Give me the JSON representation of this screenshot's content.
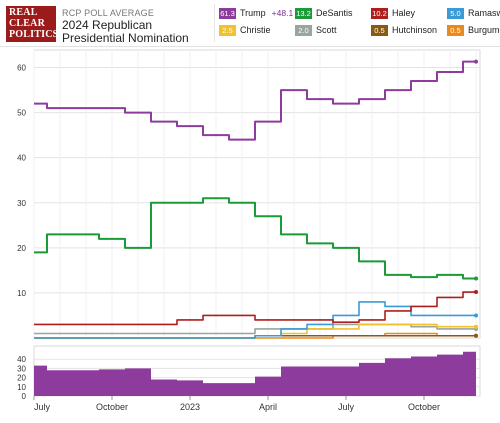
{
  "header": {
    "logo_lines": [
      "REAL",
      "CLEAR",
      "POLITICS"
    ],
    "label": "RCP POLL AVERAGE",
    "title": "2024 Republican Presidential Nomination"
  },
  "legend": [
    {
      "name": "Trump",
      "value": "61.3",
      "spread": "+48.1",
      "color": "#8e3b9e"
    },
    {
      "name": "DeSantis",
      "value": "13.2",
      "color": "#1b9a38"
    },
    {
      "name": "Haley",
      "value": "10.2",
      "color": "#b01d1d"
    },
    {
      "name": "Ramaswamy",
      "value": "5.0",
      "color": "#3a9bd6"
    },
    {
      "name": "Christie",
      "value": "2.5",
      "color": "#f2c12e"
    },
    {
      "name": "Scott",
      "value": "2.0",
      "color": "#9aa59e"
    },
    {
      "name": "Hutchinson",
      "value": "0.5",
      "color": "#8a5a12"
    },
    {
      "name": "Burgum",
      "value": "0.5",
      "color": "#e88a1c"
    }
  ],
  "chart_data": {
    "type": "line",
    "x_ticks": [
      "July",
      "October",
      "2023",
      "April",
      "July",
      "October"
    ],
    "y_ticks": [
      10,
      20,
      30,
      40,
      50,
      60
    ],
    "ylim": [
      0,
      63
    ],
    "grid": true,
    "x_months": [
      "2022-07",
      "2022-08",
      "2022-09",
      "2022-10",
      "2022-11",
      "2022-12",
      "2023-01",
      "2023-02",
      "2023-03",
      "2023-04",
      "2023-05",
      "2023-06",
      "2023-07",
      "2023-08",
      "2023-09",
      "2023-10",
      "2023-11",
      "2023-12"
    ],
    "series": [
      {
        "name": "Trump",
        "color": "#8e3b9e",
        "values": [
          52,
          51,
          51,
          51,
          50,
          48,
          47,
          45,
          44,
          48,
          55,
          53,
          52,
          53,
          55,
          57,
          59,
          61.3
        ]
      },
      {
        "name": "DeSantis",
        "color": "#1b9a38",
        "values": [
          19,
          23,
          23,
          22,
          20,
          30,
          30,
          31,
          30,
          27,
          23,
          21,
          20,
          17,
          14,
          13.5,
          14,
          13.2
        ]
      },
      {
        "name": "Haley",
        "color": "#b01d1d",
        "values": [
          3,
          3,
          3,
          3,
          3,
          3,
          4,
          5,
          5,
          4,
          4,
          4,
          3.5,
          4,
          6,
          7,
          9,
          10.2
        ]
      },
      {
        "name": "Ramaswamy",
        "color": "#3a9bd6",
        "values": [
          0,
          0,
          0,
          0,
          0,
          0,
          0,
          0,
          0,
          0.5,
          2,
          3,
          5,
          8,
          7,
          5,
          5,
          5.0
        ]
      },
      {
        "name": "Christie",
        "color": "#f2c12e",
        "values": [
          0,
          0,
          0,
          0,
          0,
          0,
          0,
          0,
          0,
          0.5,
          1,
          2,
          2,
          3,
          3,
          3,
          2.5,
          2.5
        ]
      },
      {
        "name": "Scott",
        "color": "#9aa59e",
        "values": [
          1,
          1,
          1,
          1,
          1,
          1,
          1,
          1,
          1,
          2,
          2,
          2,
          3,
          3,
          3,
          2.5,
          2,
          2.0
        ]
      },
      {
        "name": "Hutchinson",
        "color": "#8a5a12",
        "values": [
          0,
          0,
          0,
          0,
          0,
          0,
          0,
          0,
          0,
          0.5,
          0.5,
          0.5,
          0.5,
          0.5,
          0.5,
          0.5,
          0.5,
          0.5
        ]
      },
      {
        "name": "Burgum",
        "color": "#e88a1c",
        "values": [
          0,
          0,
          0,
          0,
          0,
          0,
          0,
          0,
          0,
          0,
          0,
          0,
          0.5,
          0.5,
          1,
          1,
          0.5,
          0.5
        ]
      }
    ],
    "spread": {
      "name": "Trump +spread",
      "color": "#8e3b9e",
      "y_ticks": [
        0,
        10,
        20,
        30,
        40
      ],
      "ylim": [
        0,
        50
      ],
      "values": [
        33,
        28,
        28,
        29,
        30,
        18,
        17,
        14,
        14,
        21,
        32,
        32,
        32,
        36,
        41,
        43,
        45,
        48.1
      ]
    }
  }
}
